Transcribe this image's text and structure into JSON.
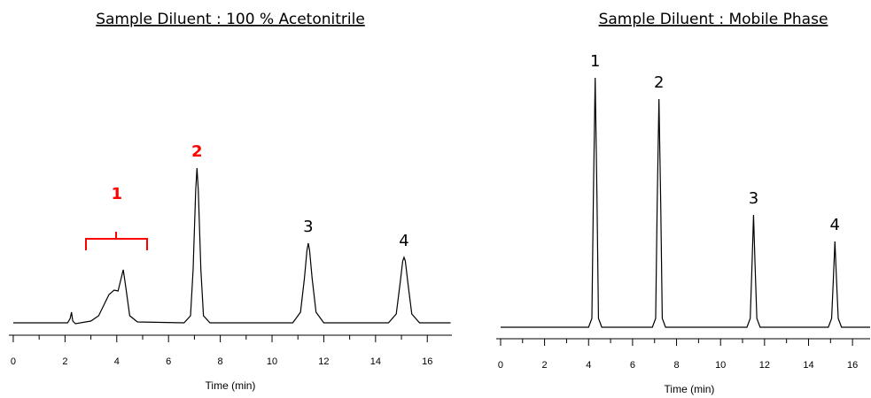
{
  "chart_data": [
    {
      "type": "line",
      "title": "Sample Diluent : 100 % Acetonitrile",
      "xlabel": "Time (min)",
      "x": [
        0,
        1.2,
        2.1,
        2.2,
        2.25,
        2.3,
        2.4,
        3.0,
        3.3,
        3.5,
        3.7,
        3.9,
        4.05,
        4.15,
        4.25,
        4.35,
        4.5,
        4.8,
        6.6,
        6.85,
        6.95,
        7.05,
        7.1,
        7.15,
        7.25,
        7.35,
        7.6,
        10.8,
        11.1,
        11.25,
        11.35,
        11.4,
        11.45,
        11.55,
        11.7,
        12.0,
        14.5,
        14.8,
        14.95,
        15.05,
        15.1,
        15.15,
        15.25,
        15.4,
        15.7,
        16.9
      ],
      "values": [
        0,
        0,
        0,
        5,
        12,
        2,
        -1,
        2,
        8,
        20,
        32,
        37,
        36,
        48,
        60,
        40,
        8,
        1,
        0,
        8,
        60,
        150,
        175,
        150,
        60,
        8,
        0,
        0,
        12,
        50,
        82,
        90,
        82,
        50,
        12,
        0,
        0,
        10,
        45,
        70,
        74,
        70,
        45,
        10,
        0,
        0
      ],
      "color": "#000000",
      "xlim": [
        -0.17,
        16.95
      ],
      "ylim": [
        -14,
        190
      ],
      "xticks": [
        0,
        2,
        4,
        6,
        8,
        10,
        12,
        14,
        16
      ],
      "xminorticks": [
        1,
        3,
        5,
        7,
        9,
        11,
        13,
        15
      ],
      "annotations": [
        {
          "text": "1",
          "x": 4.0,
          "color": "#ff0000",
          "bold": true
        },
        {
          "text": "2",
          "x": 7.1,
          "color": "#ff0000",
          "bold": true
        },
        {
          "text": "3",
          "x": 11.4,
          "color": "#000000",
          "bold": false
        },
        {
          "text": "4",
          "x": 15.1,
          "color": "#000000",
          "bold": false
        }
      ]
    },
    {
      "type": "line",
      "title": "Sample Diluent : Mobile Phase",
      "xlabel": "Time (min)",
      "x": [
        0,
        4.0,
        4.15,
        4.22,
        4.3,
        4.38,
        4.45,
        4.6,
        6.9,
        7.05,
        7.12,
        7.2,
        7.28,
        7.35,
        7.5,
        11.2,
        11.35,
        11.43,
        11.5,
        11.57,
        11.65,
        11.8,
        14.9,
        15.05,
        15.13,
        15.2,
        15.27,
        15.35,
        15.5,
        16.8
      ],
      "values": [
        0,
        0,
        10,
        150,
        282,
        150,
        10,
        0,
        0,
        10,
        140,
        258,
        140,
        10,
        0,
        0,
        10,
        70,
        127,
        70,
        10,
        0,
        0,
        10,
        55,
        97,
        55,
        10,
        0,
        0
      ],
      "color": "#000000",
      "xlim": [
        -0.2,
        16.8
      ],
      "ylim": [
        -13,
        290
      ],
      "xticks": [
        0,
        2,
        4,
        6,
        8,
        10,
        12,
        14,
        16
      ],
      "xminorticks": [
        1,
        3,
        5,
        7,
        9,
        11,
        13,
        15
      ],
      "annotations": [
        {
          "text": "1",
          "x": 4.3,
          "color": "#000000",
          "bold": false
        },
        {
          "text": "2",
          "x": 7.2,
          "color": "#000000",
          "bold": false
        },
        {
          "text": "3",
          "x": 11.5,
          "color": "#000000",
          "bold": false
        },
        {
          "text": "4",
          "x": 15.2,
          "color": "#000000",
          "bold": false
        }
      ]
    }
  ]
}
